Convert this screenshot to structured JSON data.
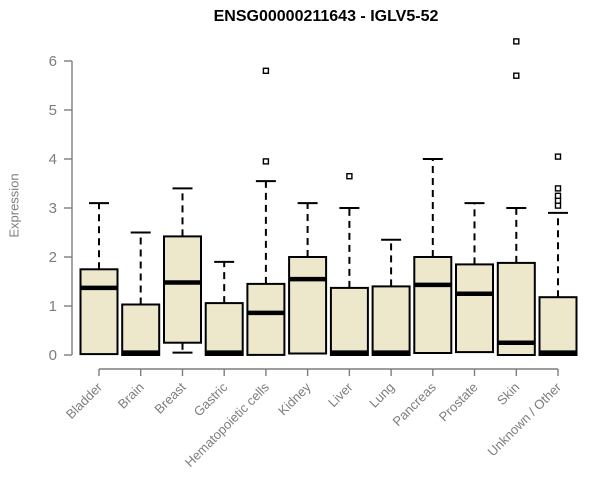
{
  "chart_data": {
    "type": "boxplot",
    "title": "ENSG00000211643 - IGLV5-52",
    "ylabel": "Expression",
    "xlabel": "",
    "ylim": [
      0,
      6.5
    ],
    "yticks": [
      0,
      1,
      2,
      3,
      4,
      5,
      6
    ],
    "grid": false,
    "legend_position": "none",
    "categories": [
      "Bladder",
      "Brain",
      "Breast",
      "Gastric",
      "Hematopoietic cells",
      "Kidney",
      "Liver",
      "Lung",
      "Pancreas",
      "Prostate",
      "Skin",
      "Unknown / Other"
    ],
    "series": [
      {
        "category": "Bladder",
        "whisker_low": 0.02,
        "q1": 0.02,
        "median": 1.37,
        "q3": 1.75,
        "whisker_high": 3.1,
        "outliers": []
      },
      {
        "category": "Brain",
        "whisker_low": 0.0,
        "q1": 0.0,
        "median": 0.05,
        "q3": 1.03,
        "whisker_high": 2.5,
        "outliers": []
      },
      {
        "category": "Breast",
        "whisker_low": 0.05,
        "q1": 0.25,
        "median": 1.48,
        "q3": 2.42,
        "whisker_high": 3.4,
        "outliers": []
      },
      {
        "category": "Gastric",
        "whisker_low": 0.0,
        "q1": 0.0,
        "median": 0.05,
        "q3": 1.06,
        "whisker_high": 1.9,
        "outliers": []
      },
      {
        "category": "Hematopoietic cells",
        "whisker_low": 0.0,
        "q1": 0.0,
        "median": 0.86,
        "q3": 1.45,
        "whisker_high": 3.55,
        "outliers": [
          3.95,
          5.8
        ]
      },
      {
        "category": "Kidney",
        "whisker_low": 0.03,
        "q1": 0.03,
        "median": 1.55,
        "q3": 2.0,
        "whisker_high": 3.1,
        "outliers": []
      },
      {
        "category": "Liver",
        "whisker_low": 0.0,
        "q1": 0.0,
        "median": 0.05,
        "q3": 1.37,
        "whisker_high": 3.0,
        "outliers": [
          3.65
        ]
      },
      {
        "category": "Lung",
        "whisker_low": 0.0,
        "q1": 0.0,
        "median": 0.05,
        "q3": 1.4,
        "whisker_high": 2.35,
        "outliers": []
      },
      {
        "category": "Pancreas",
        "whisker_low": 0.04,
        "q1": 0.04,
        "median": 1.43,
        "q3": 2.0,
        "whisker_high": 4.0,
        "outliers": []
      },
      {
        "category": "Prostate",
        "whisker_low": 0.06,
        "q1": 0.06,
        "median": 1.25,
        "q3": 1.85,
        "whisker_high": 3.1,
        "outliers": []
      },
      {
        "category": "Skin",
        "whisker_low": 0.0,
        "q1": 0.0,
        "median": 0.25,
        "q3": 1.88,
        "whisker_high": 3.0,
        "outliers": [
          5.7,
          6.4
        ]
      },
      {
        "category": "Unknown / Other",
        "whisker_low": 0.0,
        "q1": 0.0,
        "median": 0.05,
        "q3": 1.18,
        "whisker_high": 2.9,
        "outliers": [
          3.05,
          3.15,
          3.25,
          3.4,
          4.05
        ]
      }
    ],
    "colors": {
      "box_fill": "#ede8cc",
      "box_stroke": "#000000",
      "median": "#000000",
      "axis": "#7d7d7d",
      "title": "#000000",
      "background": "#ffffff"
    }
  }
}
